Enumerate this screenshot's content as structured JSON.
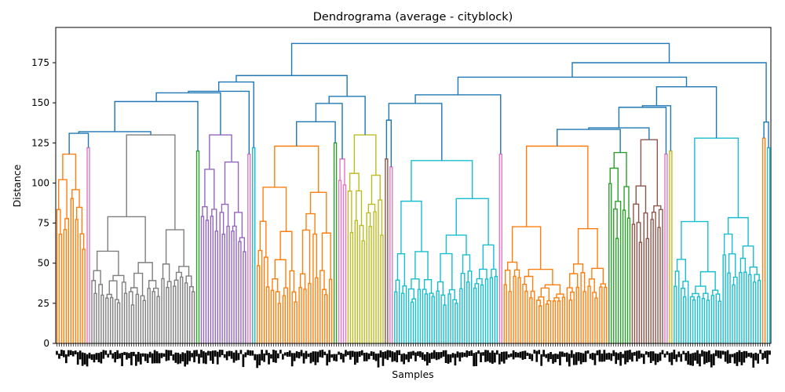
{
  "chart_data": {
    "type": "dendrogram",
    "title": "Dendrograma (average - cityblock)",
    "xlabel": "Samples",
    "ylabel": "Distance",
    "ylim": [
      0,
      197
    ],
    "yticks": [
      0,
      25,
      50,
      75,
      100,
      125,
      150,
      175
    ],
    "grid": false,
    "above_threshold_color": "#1f77b4",
    "clusters": [
      {
        "name": "c1",
        "color": "#ff7f0e",
        "leaves": 13,
        "height": 118,
        "min_height": 78
      },
      {
        "name": "c2",
        "color": "#e377c2",
        "leaves": 2,
        "height": 122,
        "min_height": 95
      },
      {
        "name": "c3",
        "color": "#7f7f7f",
        "leaves": 45,
        "height": 130,
        "min_height": 36
      },
      {
        "name": "c4",
        "color": "#2ca02c",
        "leaves": 2,
        "height": 120,
        "min_height": 90
      },
      {
        "name": "c5",
        "color": "#9467bd",
        "leaves": 20,
        "height": 130,
        "min_height": 78
      },
      {
        "name": "c6",
        "color": "#e377c2",
        "leaves": 2,
        "height": 118,
        "min_height": 95
      },
      {
        "name": "c7",
        "color": "#17becf",
        "leaves": 2,
        "height": 122,
        "min_height": 95
      },
      {
        "name": "c8",
        "color": "#ff7f0e",
        "leaves": 33,
        "height": 123,
        "min_height": 36
      },
      {
        "name": "c9",
        "color": "#2ca02c",
        "leaves": 2,
        "height": 125,
        "min_height": 95
      },
      {
        "name": "c10",
        "color": "#e377c2",
        "leaves": 4,
        "height": 115,
        "min_height": 90
      },
      {
        "name": "c11",
        "color": "#bcbd22",
        "leaves": 16,
        "height": 130,
        "min_height": 78
      },
      {
        "name": "c12",
        "color": "#8c564b",
        "leaves": 2,
        "height": 115,
        "min_height": 95
      },
      {
        "name": "c13",
        "color": "#e377c2",
        "leaves": 2,
        "height": 110,
        "min_height": 95
      },
      {
        "name": "c14",
        "color": "#17becf",
        "leaves": 45,
        "height": 114,
        "min_height": 36
      },
      {
        "name": "c15",
        "color": "#e377c2",
        "leaves": 2,
        "height": 118,
        "min_height": 95
      },
      {
        "name": "c16",
        "color": "#ff7f0e",
        "leaves": 45,
        "height": 123,
        "min_height": 36
      },
      {
        "name": "c17",
        "color": "#2ca02c",
        "leaves": 10,
        "height": 119,
        "min_height": 78
      },
      {
        "name": "c18",
        "color": "#8c564b",
        "leaves": 14,
        "height": 127,
        "min_height": 78
      },
      {
        "name": "c19",
        "color": "#e377c2",
        "leaves": 2,
        "height": 118,
        "min_height": 95
      },
      {
        "name": "c20",
        "color": "#bcbd22",
        "leaves": 2,
        "height": 120,
        "min_height": 95
      },
      {
        "name": "c21",
        "color": "#17becf",
        "leaves": 38,
        "height": 128,
        "min_height": 36
      },
      {
        "name": "c22",
        "color": "#ff7f0e",
        "leaves": 2,
        "height": 128,
        "min_height": 95
      },
      {
        "name": "c23",
        "color": "#17becf",
        "leaves": 2,
        "height": 122,
        "min_height": 95
      }
    ],
    "groups": [
      {
        "name": "g1",
        "members": [
          0,
          1,
          2,
          3,
          4,
          5,
          6
        ],
        "heights": [
          133,
          152,
          157,
          163
        ]
      },
      {
        "name": "g2",
        "members": [
          7,
          8,
          9,
          10
        ],
        "heights": [
          139,
          150,
          154
        ]
      },
      {
        "name": "g3",
        "members": [
          11,
          12,
          13,
          14
        ],
        "heights": [
          140,
          150,
          155
        ]
      },
      {
        "name": "g4",
        "members": [
          15,
          16,
          17,
          18,
          19,
          20
        ],
        "heights": [
          135,
          148,
          160
        ]
      },
      {
        "name": "g5",
        "members": [
          21,
          22
        ],
        "heights": [
          138
        ]
      }
    ],
    "top_links": [
      {
        "left": "g1",
        "right": "g2",
        "height": 167
      },
      {
        "left": "g3",
        "right": "g4",
        "height": 166
      },
      {
        "left": "g3g4",
        "right": "g5",
        "height": 175
      },
      {
        "left": "g1g2",
        "right": "rest",
        "height": 187
      }
    ]
  }
}
